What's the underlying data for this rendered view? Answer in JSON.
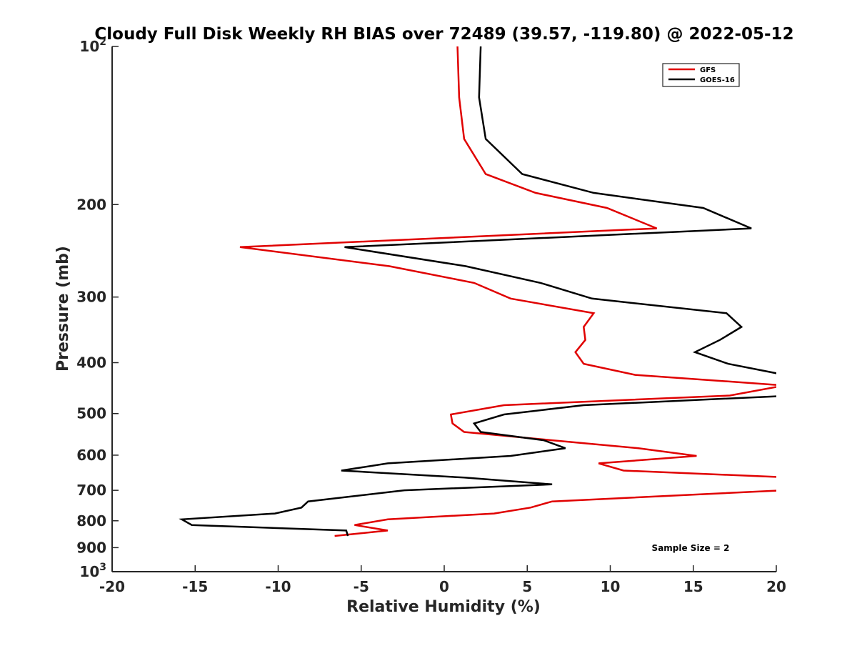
{
  "chart_data": {
    "type": "line",
    "title": "Cloudy Full Disk Weekly RH BIAS over 72489 (39.57, -119.80) @ 2022-05-12",
    "xlabel": "Relative Humidity (%)",
    "ylabel": "Pressure (mb)",
    "xlim": [
      -20,
      20
    ],
    "ylim": [
      100,
      1000
    ],
    "y_scale": "log",
    "y_reversed": true,
    "x_ticks": [
      -20,
      -15,
      -10,
      -5,
      0,
      5,
      10,
      15,
      20
    ],
    "x_tick_labels": [
      "-20",
      "-15",
      "-10",
      "-5",
      "0",
      "5",
      "10",
      "15",
      "20"
    ],
    "y_ticks": [
      100,
      200,
      300,
      400,
      500,
      600,
      700,
      800,
      900,
      1000
    ],
    "y_tick_labels": [
      {
        "base": "10",
        "exp": "2"
      },
      {
        "base": "200",
        "exp": ""
      },
      {
        "base": "300",
        "exp": ""
      },
      {
        "base": "400",
        "exp": ""
      },
      {
        "base": "500",
        "exp": ""
      },
      {
        "base": "600",
        "exp": ""
      },
      {
        "base": "700",
        "exp": ""
      },
      {
        "base": "800",
        "exp": ""
      },
      {
        "base": "900",
        "exp": ""
      },
      {
        "base": "10",
        "exp": "3"
      }
    ],
    "grid": false,
    "legend_position": "top-right",
    "annotation": "Sample Size = 2",
    "series": [
      {
        "name": "GFS",
        "color": "#e00000",
        "points": [
          [
            0.8,
            100
          ],
          [
            0.9,
            125
          ],
          [
            1.2,
            150
          ],
          [
            2.5,
            175
          ],
          [
            5.5,
            190
          ],
          [
            9.8,
            203
          ],
          [
            12.8,
            222
          ],
          [
            -12.3,
            241
          ],
          [
            -3.3,
            262
          ],
          [
            1.8,
            282
          ],
          [
            4.0,
            302
          ],
          [
            9.0,
            322
          ],
          [
            8.4,
            342
          ],
          [
            8.5,
            362
          ],
          [
            7.9,
            382
          ],
          [
            8.4,
            402
          ],
          [
            11.5,
            422
          ],
          [
            20.5,
            442
          ],
          [
            17.2,
            462
          ],
          [
            3.6,
            482
          ],
          [
            0.4,
            502
          ],
          [
            0.5,
            522
          ],
          [
            1.2,
            542
          ],
          [
            6.5,
            562
          ],
          [
            11.7,
            582
          ],
          [
            15.2,
            602
          ],
          [
            9.3,
            622
          ],
          [
            10.8,
            642
          ],
          [
            21.0,
            662
          ],
          [
            20.5,
            700
          ],
          [
            6.5,
            735
          ],
          [
            5.2,
            755
          ],
          [
            3.0,
            775
          ],
          [
            -3.4,
            795
          ],
          [
            -5.4,
            815
          ],
          [
            -3.4,
            835
          ],
          [
            -6.6,
            855
          ]
        ]
      },
      {
        "name": "GOES-16",
        "color": "#000000",
        "points": [
          [
            2.2,
            100
          ],
          [
            2.1,
            125
          ],
          [
            2.5,
            150
          ],
          [
            4.7,
            175
          ],
          [
            9.0,
            190
          ],
          [
            15.6,
            203
          ],
          [
            18.5,
            222
          ],
          [
            -6.0,
            241
          ],
          [
            1.3,
            262
          ],
          [
            5.8,
            282
          ],
          [
            8.9,
            302
          ],
          [
            17.0,
            322
          ],
          [
            17.9,
            342
          ],
          [
            16.6,
            362
          ],
          [
            15.1,
            382
          ],
          [
            17.1,
            402
          ],
          [
            20.5,
            422
          ],
          [
            21.0,
            462
          ],
          [
            8.4,
            482
          ],
          [
            3.6,
            502
          ],
          [
            1.8,
            522
          ],
          [
            2.2,
            542
          ],
          [
            6.0,
            562
          ],
          [
            7.3,
            582
          ],
          [
            4.0,
            602
          ],
          [
            -3.4,
            622
          ],
          [
            -6.2,
            642
          ],
          [
            1.2,
            662
          ],
          [
            6.5,
            682
          ],
          [
            -2.4,
            700
          ],
          [
            -8.2,
            735
          ],
          [
            -8.6,
            755
          ],
          [
            -10.2,
            775
          ],
          [
            -15.8,
            795
          ],
          [
            -15.2,
            815
          ],
          [
            -5.9,
            835
          ],
          [
            -5.8,
            855
          ]
        ]
      }
    ]
  }
}
